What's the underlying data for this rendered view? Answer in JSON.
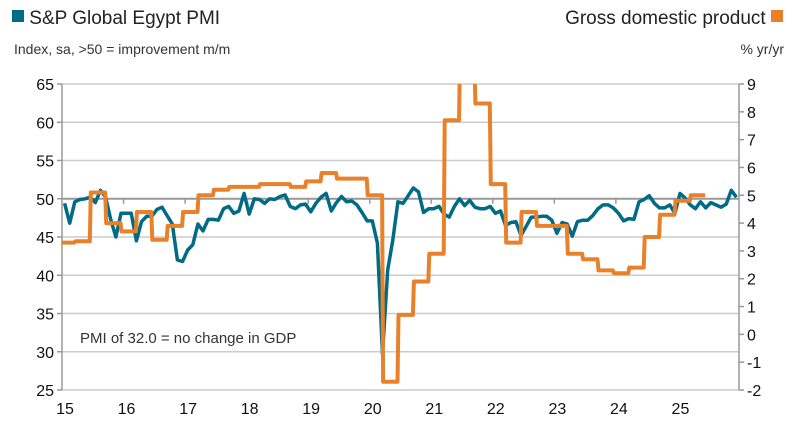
{
  "chart_data": {
    "type": "line",
    "title": "",
    "legend": [
      {
        "name": "S&P Global Egypt PMI",
        "color": "#006b85",
        "axis": "left",
        "placement": "top-left"
      },
      {
        "name": "Gross domestic product",
        "color": "#e8812a",
        "axis": "right",
        "placement": "top-right"
      }
    ],
    "left_axis": {
      "label": "Index, sa, >50 = improvement m/m",
      "ylim": [
        25,
        65
      ],
      "ticks": [
        25,
        30,
        35,
        40,
        45,
        50,
        55,
        60,
        65
      ]
    },
    "right_axis": {
      "label": "% yr/yr",
      "ylim": [
        -2,
        9
      ],
      "ticks": [
        -2,
        -1,
        0,
        1,
        2,
        3,
        4,
        5,
        6,
        7,
        8,
        9
      ]
    },
    "x_axis": {
      "start_year": 2015,
      "end_year": 2026,
      "tick_labels": [
        "15",
        "16",
        "17",
        "18",
        "19",
        "20",
        "21",
        "22",
        "23",
        "24",
        "25"
      ]
    },
    "annotation": "PMI of 32.0 = no change in GDP",
    "series": [
      {
        "name": "S&P Global Egypt PMI",
        "frequency": "monthly",
        "start": "2015-01",
        "values": [
          49.4,
          46.8,
          49.6,
          49.9,
          50.0,
          50.2,
          49.5,
          51.1,
          50.2,
          47.3,
          45.0,
          48.1,
          48.1,
          48.1,
          44.5,
          47.0,
          47.7,
          47.7,
          48.6,
          48.9,
          47.8,
          46.7,
          42.0,
          41.8,
          43.3,
          44.0,
          46.7,
          45.8,
          47.3,
          47.3,
          47.2,
          48.7,
          49.0,
          48.1,
          48.4,
          50.7,
          48.0,
          50.0,
          49.9,
          49.4,
          50.0,
          49.9,
          50.3,
          50.5,
          49.0,
          48.7,
          49.2,
          49.3,
          48.3,
          49.4,
          50.2,
          50.7,
          48.4,
          49.5,
          50.3,
          49.6,
          49.7,
          49.2,
          48.2,
          47.1,
          47.1,
          44.2,
          29.7,
          40.7,
          44.6,
          49.6,
          49.4,
          50.4,
          51.4,
          50.9,
          48.2,
          48.7,
          48.7,
          49.0,
          48.0,
          47.6,
          49.0,
          50.0,
          49.1,
          49.8,
          48.9,
          48.7,
          48.7,
          49.0,
          48.1,
          48.4,
          46.5,
          46.9,
          47.0,
          45.2,
          46.4,
          47.6,
          47.6,
          47.7,
          47.7,
          47.2,
          45.5,
          46.9,
          46.7,
          45.1,
          47.0,
          47.2,
          47.2,
          47.8,
          48.7,
          49.2,
          49.2,
          48.8,
          48.1,
          47.1,
          47.4,
          47.3,
          49.6,
          49.9,
          50.4,
          49.4,
          48.8,
          48.8,
          49.2,
          48.1,
          50.7,
          50.1,
          49.2,
          48.7,
          49.6,
          48.8,
          49.5,
          49.2,
          48.9,
          49.3,
          51.1,
          50.2
        ]
      },
      {
        "name": "Gross domestic product",
        "frequency": "quarterly",
        "start": "2015-Q1",
        "values": [
          3.3,
          3.35,
          5.1,
          4.0,
          3.7,
          4.4,
          3.4,
          3.9,
          4.4,
          5.0,
          5.2,
          5.3,
          5.3,
          5.4,
          5.4,
          5.3,
          5.5,
          5.8,
          5.6,
          5.6,
          5.0,
          -1.7,
          0.7,
          1.9,
          2.9,
          7.7,
          9.8,
          8.3,
          5.4,
          3.3,
          4.4,
          3.9,
          3.9,
          2.9,
          2.7,
          2.3,
          2.2,
          2.4,
          3.5,
          4.3,
          4.8,
          5.0
        ]
      }
    ]
  }
}
